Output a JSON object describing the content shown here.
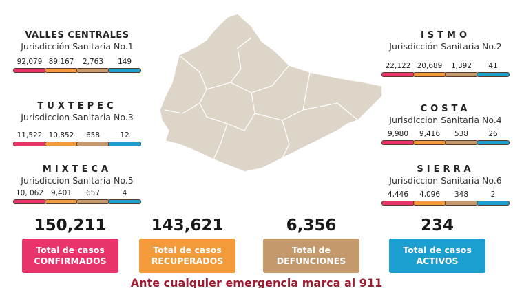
{
  "colors": {
    "confirmados": "#e8336b",
    "recuperados": "#f39a3a",
    "defunciones": "#c49a6c",
    "activos": "#1b9fd1",
    "footer": "#9b1b30",
    "map": "#ddd5c8"
  },
  "regions": [
    {
      "title": "VALLES CENTRALES",
      "subtitle": "Jurisdicción Sanitaria No.1",
      "values": [
        "92,079",
        "89,167",
        "2,763",
        "149"
      ]
    },
    {
      "title": "ISTMO",
      "subtitle": "Jurisdicción Sanitaria No.2",
      "values": [
        "22,122",
        "20,689",
        "1,392",
        "41"
      ]
    },
    {
      "title": "TUXTEPEC",
      "subtitle": "Jurisdiccion Sanitaria No.3",
      "values": [
        "11,522",
        "10,852",
        "658",
        "12"
      ]
    },
    {
      "title": "COSTA",
      "subtitle": "Jurisdiccion Sanitaria No.4",
      "values": [
        "9,980",
        "9,416",
        "538",
        "26"
      ]
    },
    {
      "title": "MIXTECA",
      "subtitle": "Jurisdiccion Sanitaria No.5",
      "values": [
        "10, 062",
        "9,401",
        "657",
        "4"
      ]
    },
    {
      "title": "SIERRA",
      "subtitle": "Jurisdiccion Sanitaria No.6",
      "values": [
        "4,446",
        "4,096",
        "348",
        "2"
      ]
    }
  ],
  "totals": [
    {
      "value": "150,211",
      "line1": "Total de casos",
      "line2": "CONFIRMADOS"
    },
    {
      "value": "143,621",
      "line1": "Total de casos",
      "line2": "RECUPERADOS"
    },
    {
      "value": "6,356",
      "line1": "Total de",
      "line2": "DEFUNCIONES"
    },
    {
      "value": "234",
      "line1": "Total de casos",
      "line2": "ACTIVOS"
    }
  ],
  "footer": "Ante cualquier emergencia marca al 911"
}
